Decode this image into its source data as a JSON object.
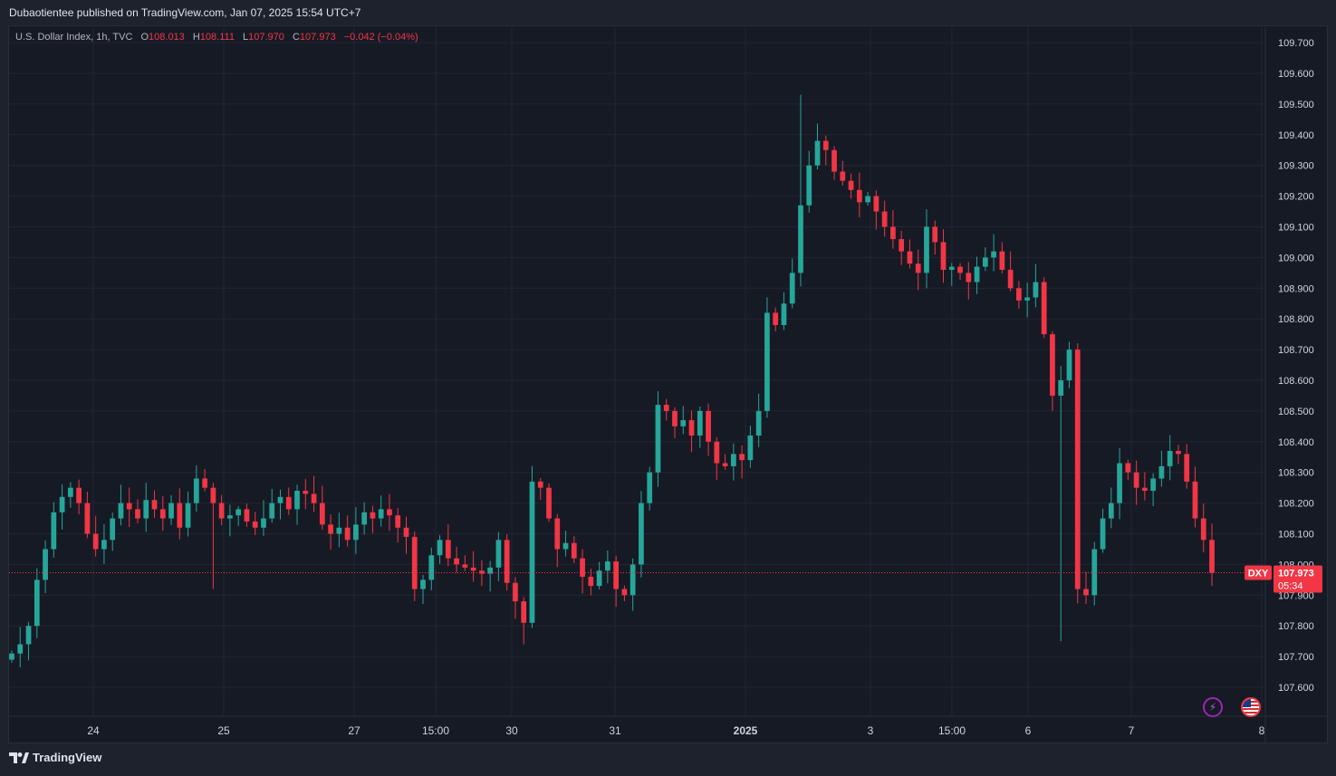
{
  "header": {
    "publisher_line": "Dubaotientee published on TradingView.com, Jan 07, 2025 15:54 UTC+7"
  },
  "legend": {
    "symbol": "U.S. Dollar Index, 1h, TVC",
    "open_label": "O",
    "open": "108.013",
    "high_label": "H",
    "high": "108.111",
    "low_label": "L",
    "low": "107.970",
    "close_label": "C",
    "close": "107.973",
    "change": "−0.042 (−0.04%)"
  },
  "price_marker": {
    "ticker": "DXY",
    "price": "107.973",
    "countdown": "05:34"
  },
  "footer": {
    "brand": "TradingView"
  },
  "icons": [
    "lightning-icon",
    "us-flag-icon",
    "tradingview-logo-icon"
  ],
  "colors": {
    "up": "#26a69a",
    "down": "#f23645",
    "background": "#161a25",
    "grid": "#232632",
    "axis_text": "#d1d4dc"
  },
  "chart_data": {
    "type": "candlestick",
    "title": "U.S. Dollar Index, 1h, TVC",
    "ylim": [
      107.55,
      109.75
    ],
    "y_ticks": [
      "107.600",
      "107.700",
      "107.800",
      "107.900",
      "108.000",
      "108.100",
      "108.200",
      "108.300",
      "108.400",
      "108.500",
      "108.600",
      "108.700",
      "108.800",
      "108.900",
      "109.000",
      "109.100",
      "109.200",
      "109.300",
      "109.400",
      "109.500",
      "109.600",
      "109.700"
    ],
    "x_ticks": [
      "24",
      "25",
      "27",
      "15:00",
      "30",
      "31",
      "2025",
      "3",
      "15:00",
      "6",
      "7",
      "8"
    ],
    "last_price": 107.973,
    "grid": true,
    "path": [
      107.71,
      107.74,
      107.8,
      107.95,
      108.05,
      108.17,
      108.22,
      108.25,
      108.2,
      108.1,
      108.05,
      108.08,
      108.15,
      108.2,
      108.18,
      108.15,
      108.21,
      108.18,
      108.15,
      108.2,
      108.12,
      108.2,
      108.28,
      108.25,
      108.2,
      108.15,
      108.16,
      108.18,
      108.14,
      108.12,
      108.15,
      108.2,
      108.22,
      108.18,
      108.24,
      108.23,
      108.2,
      108.13,
      108.1,
      108.12,
      108.08,
      108.13,
      108.17,
      108.15,
      108.18,
      108.16,
      108.12,
      108.09,
      107.92,
      107.95,
      108.03,
      108.08,
      108.02,
      108.0,
      107.99,
      107.98,
      107.97,
      107.99,
      108.08,
      107.94,
      107.88,
      107.81,
      108.27,
      108.25,
      108.15,
      108.05,
      108.07,
      108.02,
      107.96,
      107.93,
      107.98,
      108.01,
      107.92,
      107.9,
      108.0,
      108.2,
      108.3,
      108.52,
      108.5,
      108.45,
      108.47,
      108.42,
      108.5,
      108.4,
      108.33,
      108.32,
      108.36,
      108.34,
      108.42,
      108.5,
      108.82,
      108.78,
      108.85,
      108.95,
      109.17,
      109.3,
      109.38,
      109.35,
      109.28,
      109.25,
      109.22,
      109.18,
      109.2,
      109.15,
      109.1,
      109.06,
      109.02,
      108.98,
      108.95,
      109.1,
      109.05,
      108.96,
      108.97,
      108.95,
      108.92,
      108.97,
      109.0,
      109.02,
      108.96,
      108.9,
      108.86,
      108.87,
      108.92,
      108.75,
      108.55,
      108.6,
      108.7,
      107.92,
      107.9,
      108.05,
      108.15,
      108.2,
      108.33,
      108.3,
      108.25,
      108.24,
      108.28,
      108.32,
      108.37,
      108.36,
      108.27,
      108.15,
      108.08,
      107.973
    ]
  }
}
